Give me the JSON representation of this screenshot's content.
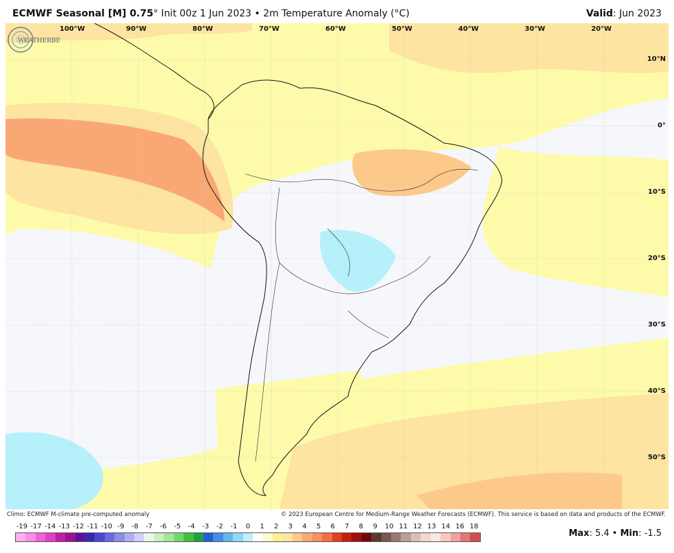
{
  "header": {
    "title_bold": "ECMWF Seasonal [M] 0.75",
    "title_rest": "° Init 00z 1 Jun 2023 • 2m Temperature Anomaly (°C)",
    "valid_label": "Valid",
    "valid_value": ": Jun 2023"
  },
  "map": {
    "lon_labels": [
      "100°W",
      "90°W",
      "80°W",
      "70°W",
      "60°W",
      "50°W",
      "40°W",
      "30°W",
      "20°W"
    ],
    "lat_labels": [
      "10°N",
      "0°",
      "10°S",
      "20°S",
      "30°S",
      "40°S",
      "50°S"
    ],
    "colors": {
      "neutral": "#f6f7fb",
      "yellow": "#fdfbaa",
      "light_orange": "#fde4a0",
      "orange": "#fdc98a",
      "dark_orange": "#f9a874",
      "red_orange": "#f7905e",
      "light_blue": "#b6f0fb",
      "blue": "#a5d6fb"
    }
  },
  "logo": {
    "text": "WEATHERBELL"
  },
  "footer": {
    "left": "Climo: ECMWF M-climate pre-computed anomaly",
    "right": "© 2023 European Centre for Medium-Range Weather Forecasts (ECMWF). This service is based on data and products of the ECMWF."
  },
  "legend": {
    "ticks": [
      "-19",
      "-17",
      "-14",
      "-13",
      "-12",
      "-11",
      "-10",
      "-9",
      "-8",
      "-7",
      "-6",
      "-5",
      "-4",
      "-3",
      "-2",
      "-1",
      "0",
      "1",
      "2",
      "3",
      "4",
      "5",
      "6",
      "7",
      "8",
      "9",
      "10",
      "11",
      "12",
      "13",
      "14",
      "16",
      "18"
    ],
    "colors": [
      "#fbb0f0",
      "#f98ee8",
      "#f060dc",
      "#e040c8",
      "#c020a8",
      "#a01090",
      "#6010a0",
      "#3a28b0",
      "#4848d0",
      "#6a6ae0",
      "#8c8ce8",
      "#b0b0f0",
      "#d0d0f8",
      "#e8f8e8",
      "#c8f0c0",
      "#a0e898",
      "#70d870",
      "#40c040",
      "#20a040",
      "#2060d0",
      "#4090e8",
      "#60b8f0",
      "#90d8f8",
      "#c0f0fc",
      "#ffffff",
      "#fffccc",
      "#fdf090",
      "#fde4a0",
      "#fdc98a",
      "#f9a874",
      "#f7905e",
      "#f07040",
      "#e04020",
      "#c02010",
      "#a01010",
      "#700808",
      "#5a3a30",
      "#7a5a50",
      "#9a7a70",
      "#b8a098",
      "#d8c0b8",
      "#f0d8d0",
      "#f8e8e4",
      "#f8c8c0",
      "#f0a0a0",
      "#e07878",
      "#d05050"
    ],
    "max_label": "Max",
    "max_value": ": 5.4 • ",
    "min_label": "Min",
    "min_value": ": -1.5"
  }
}
